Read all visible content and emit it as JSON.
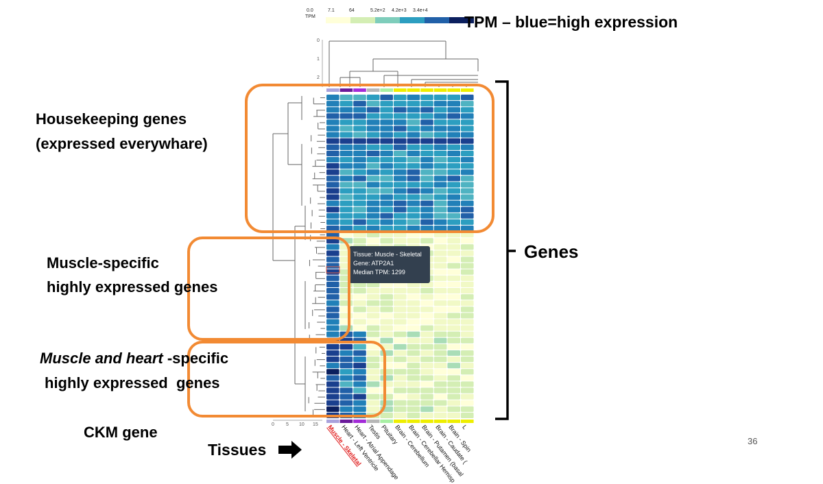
{
  "legend": {
    "label": "TPM",
    "ticks": [
      "0.0",
      "7.1",
      "64",
      "5.2e+2",
      "4.2e+3",
      "3.4e+4"
    ],
    "colors": [
      "#ffffd9",
      "#d4eeb4",
      "#7ecdbb",
      "#2c9ec0",
      "#2160a8",
      "#0b1f5e"
    ]
  },
  "annotations": {
    "tpm_note": "TPM – blue=high expression",
    "housekeeping_line1": "Housekeeping genes",
    "housekeeping_line2": "(expressed everywhare)",
    "muscle_line1": "Muscle-specific",
    "muscle_line2": "highly expressed genes",
    "muscle_heart_italic": "Muscle and heart ",
    "muscle_heart_rest": "-specific",
    "muscle_heart_line2": "highly expressed  genes",
    "ckm_gene": "CKM gene",
    "tissues": "Tissues",
    "genes": "Genes"
  },
  "tooltip": {
    "tissue": "Tissue: Muscle - Skeletal",
    "gene": "Gene: ATP2A1",
    "median": "Median TPM: 1299"
  },
  "dendrogram_axis_top": [
    "0",
    "1",
    "2"
  ],
  "dendrogram_axis_bottom": [
    "0",
    "5",
    "10",
    "15"
  ],
  "tissues": [
    "Muscle - Skeletal",
    "Heart - Left Ventricle",
    "Heart - Atrial Appendage",
    "Testis",
    "Pituitary",
    "Brain - Cerebellum",
    "Brain - Cerebellar Hemisp",
    "Brain - Putamen (basal",
    "Brain - Caudate (",
    "Brain - Spin",
    "L"
  ],
  "tissue_colors": [
    "#a9a2dc",
    "#6a1a9a",
    "#a32bd8",
    "#b7b7b7",
    "#a8f0a4",
    "#eeee00",
    "#eeee00",
    "#eeee00",
    "#eeee00",
    "#eeee00",
    "#eeee00"
  ],
  "page_number": "36"
}
